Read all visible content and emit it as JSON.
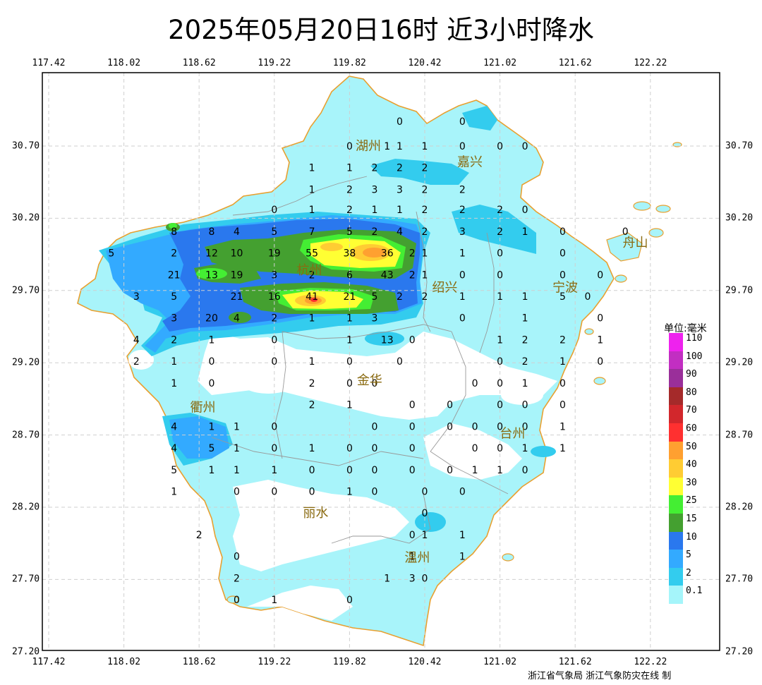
{
  "title": "2025年05月20日16时  近3小时降水",
  "axes": {
    "lon_ticks": [
      "117.42",
      "118.02",
      "118.62",
      "119.22",
      "119.82",
      "120.42",
      "121.02",
      "121.62",
      "122.22"
    ],
    "lat_ticks": [
      "30.70",
      "30.20",
      "29.70",
      "29.20",
      "28.70",
      "28.20",
      "27.70",
      "27.20"
    ]
  },
  "legend": {
    "title": "单位:毫米",
    "items": [
      {
        "label": "110",
        "color": "#ee22ee"
      },
      {
        "label": "100",
        "color": "#c22ec2"
      },
      {
        "label": "90",
        "color": "#9a2f9a"
      },
      {
        "label": "80",
        "color": "#a52a2a"
      },
      {
        "label": "70",
        "color": "#d2272c"
      },
      {
        "label": "60",
        "color": "#ff3030"
      },
      {
        "label": "50",
        "color": "#ffa030"
      },
      {
        "label": "40",
        "color": "#ffcc33"
      },
      {
        "label": "30",
        "color": "#ffff33"
      },
      {
        "label": "25",
        "color": "#44ee33"
      },
      {
        "label": "15",
        "color": "#44a030"
      },
      {
        "label": "10",
        "color": "#2a78ee"
      },
      {
        "label": "5",
        "color": "#33aaff"
      },
      {
        "label": "2",
        "color": "#33ccee"
      },
      {
        "label": "0.1",
        "color": "#a5f5fa"
      }
    ]
  },
  "cities": [
    {
      "name": "湖州",
      "lon": 119.97,
      "lat": 30.7
    },
    {
      "name": "嘉兴",
      "lon": 120.78,
      "lat": 30.59
    },
    {
      "name": "舟山",
      "lon": 122.1,
      "lat": 30.03
    },
    {
      "name": "杭州",
      "lon": 119.5,
      "lat": 29.84
    },
    {
      "name": "绍兴",
      "lon": 120.58,
      "lat": 29.72
    },
    {
      "name": "宁波",
      "lon": 121.54,
      "lat": 29.72
    },
    {
      "name": "金华",
      "lon": 119.98,
      "lat": 29.08
    },
    {
      "name": "衢州",
      "lon": 118.65,
      "lat": 28.89
    },
    {
      "name": "台州",
      "lon": 121.12,
      "lat": 28.71
    },
    {
      "name": "丽水",
      "lon": 119.55,
      "lat": 28.16
    },
    {
      "name": "温州",
      "lon": 120.36,
      "lat": 27.85
    }
  ],
  "stations": [
    [
      120.22,
      30.87,
      "0"
    ],
    [
      120.72,
      30.87,
      "0"
    ],
    [
      119.82,
      30.7,
      "0"
    ],
    [
      120.12,
      30.7,
      "1"
    ],
    [
      120.22,
      30.7,
      "1"
    ],
    [
      120.42,
      30.7,
      "1"
    ],
    [
      120.72,
      30.7,
      "0"
    ],
    [
      121.02,
      30.7,
      "0"
    ],
    [
      121.22,
      30.7,
      "0"
    ],
    [
      119.52,
      30.55,
      "1"
    ],
    [
      119.82,
      30.55,
      "1"
    ],
    [
      120.02,
      30.55,
      "2"
    ],
    [
      120.22,
      30.55,
      "2"
    ],
    [
      120.42,
      30.55,
      "2"
    ],
    [
      119.52,
      30.4,
      "1"
    ],
    [
      119.82,
      30.4,
      "2"
    ],
    [
      120.02,
      30.4,
      "3"
    ],
    [
      120.22,
      30.4,
      "3"
    ],
    [
      120.42,
      30.4,
      "2"
    ],
    [
      120.72,
      30.4,
      "2"
    ],
    [
      119.22,
      30.26,
      "0"
    ],
    [
      119.52,
      30.26,
      "1"
    ],
    [
      119.82,
      30.26,
      "2"
    ],
    [
      120.02,
      30.26,
      "1"
    ],
    [
      120.22,
      30.26,
      "1"
    ],
    [
      120.42,
      30.26,
      "2"
    ],
    [
      120.72,
      30.26,
      "2"
    ],
    [
      121.02,
      30.26,
      "2"
    ],
    [
      121.22,
      30.26,
      "0"
    ],
    [
      118.42,
      30.11,
      "8"
    ],
    [
      118.72,
      30.11,
      "8"
    ],
    [
      118.92,
      30.11,
      "4"
    ],
    [
      119.22,
      30.11,
      "5"
    ],
    [
      119.52,
      30.11,
      "7"
    ],
    [
      119.82,
      30.11,
      "5"
    ],
    [
      120.02,
      30.11,
      "2"
    ],
    [
      120.22,
      30.11,
      "4"
    ],
    [
      120.42,
      30.11,
      "2"
    ],
    [
      120.72,
      30.11,
      "3"
    ],
    [
      121.02,
      30.11,
      "2"
    ],
    [
      121.22,
      30.11,
      "1"
    ],
    [
      121.52,
      30.11,
      "0"
    ],
    [
      122.02,
      30.11,
      "0"
    ],
    [
      117.92,
      29.96,
      "5"
    ],
    [
      118.42,
      29.96,
      "2"
    ],
    [
      118.72,
      29.96,
      "12"
    ],
    [
      118.92,
      29.96,
      "10"
    ],
    [
      119.22,
      29.96,
      "19"
    ],
    [
      119.52,
      29.96,
      "55"
    ],
    [
      119.82,
      29.96,
      "38"
    ],
    [
      120.12,
      29.96,
      "36"
    ],
    [
      120.32,
      29.96,
      "2"
    ],
    [
      120.42,
      29.96,
      "1"
    ],
    [
      120.72,
      29.96,
      "1"
    ],
    [
      121.02,
      29.96,
      "0"
    ],
    [
      121.52,
      29.96,
      "0"
    ],
    [
      118.42,
      29.81,
      "21"
    ],
    [
      118.72,
      29.81,
      "13"
    ],
    [
      118.92,
      29.81,
      "19"
    ],
    [
      119.22,
      29.81,
      "3"
    ],
    [
      119.52,
      29.81,
      "2"
    ],
    [
      119.82,
      29.81,
      "6"
    ],
    [
      120.12,
      29.81,
      "43"
    ],
    [
      120.32,
      29.81,
      "2"
    ],
    [
      120.42,
      29.81,
      "1"
    ],
    [
      120.72,
      29.81,
      "0"
    ],
    [
      121.02,
      29.81,
      "0"
    ],
    [
      121.52,
      29.81,
      "0"
    ],
    [
      121.82,
      29.81,
      "0"
    ],
    [
      118.12,
      29.66,
      "3"
    ],
    [
      118.42,
      29.66,
      "5"
    ],
    [
      118.92,
      29.66,
      "21"
    ],
    [
      119.22,
      29.66,
      "16"
    ],
    [
      119.52,
      29.66,
      "41"
    ],
    [
      119.82,
      29.66,
      "21"
    ],
    [
      120.02,
      29.66,
      "5"
    ],
    [
      120.22,
      29.66,
      "2"
    ],
    [
      120.42,
      29.66,
      "2"
    ],
    [
      120.72,
      29.66,
      "1"
    ],
    [
      121.02,
      29.66,
      "1"
    ],
    [
      121.22,
      29.66,
      "1"
    ],
    [
      121.52,
      29.66,
      "5"
    ],
    [
      121.72,
      29.66,
      "0"
    ],
    [
      118.42,
      29.51,
      "3"
    ],
    [
      118.72,
      29.51,
      "20"
    ],
    [
      118.92,
      29.51,
      "4"
    ],
    [
      119.22,
      29.51,
      "2"
    ],
    [
      119.52,
      29.51,
      "1"
    ],
    [
      119.82,
      29.51,
      "1"
    ],
    [
      120.02,
      29.51,
      "3"
    ],
    [
      120.72,
      29.51,
      "0"
    ],
    [
      121.22,
      29.51,
      "1"
    ],
    [
      121.82,
      29.51,
      "0"
    ],
    [
      118.12,
      29.36,
      "4"
    ],
    [
      118.42,
      29.36,
      "2"
    ],
    [
      118.72,
      29.36,
      "1"
    ],
    [
      119.22,
      29.36,
      "0"
    ],
    [
      119.82,
      29.36,
      "1"
    ],
    [
      120.12,
      29.36,
      "13"
    ],
    [
      120.32,
      29.36,
      "0"
    ],
    [
      121.02,
      29.36,
      "1"
    ],
    [
      121.22,
      29.36,
      "2"
    ],
    [
      121.52,
      29.36,
      "2"
    ],
    [
      121.82,
      29.36,
      "1"
    ],
    [
      118.12,
      29.21,
      "2"
    ],
    [
      118.42,
      29.21,
      "1"
    ],
    [
      118.72,
      29.21,
      "0"
    ],
    [
      119.22,
      29.21,
      "0"
    ],
    [
      119.52,
      29.21,
      "1"
    ],
    [
      119.82,
      29.21,
      "0"
    ],
    [
      120.22,
      29.21,
      "0"
    ],
    [
      121.02,
      29.21,
      "0"
    ],
    [
      121.22,
      29.21,
      "2"
    ],
    [
      121.52,
      29.21,
      "1"
    ],
    [
      121.82,
      29.21,
      "0"
    ],
    [
      118.42,
      29.06,
      "1"
    ],
    [
      118.72,
      29.06,
      "0"
    ],
    [
      119.52,
      29.06,
      "2"
    ],
    [
      119.82,
      29.06,
      "0"
    ],
    [
      120.02,
      29.06,
      "0"
    ],
    [
      120.82,
      29.06,
      "0"
    ],
    [
      121.02,
      29.06,
      "0"
    ],
    [
      121.22,
      29.06,
      "1"
    ],
    [
      121.52,
      29.06,
      "0"
    ],
    [
      119.52,
      28.91,
      "2"
    ],
    [
      119.82,
      28.91,
      "1"
    ],
    [
      120.32,
      28.91,
      "0"
    ],
    [
      120.62,
      28.91,
      "0"
    ],
    [
      121.02,
      28.91,
      "0"
    ],
    [
      121.22,
      28.91,
      "0"
    ],
    [
      121.52,
      28.91,
      "0"
    ],
    [
      118.42,
      28.76,
      "4"
    ],
    [
      118.72,
      28.76,
      "1"
    ],
    [
      118.92,
      28.76,
      "1"
    ],
    [
      119.22,
      28.76,
      "0"
    ],
    [
      120.02,
      28.76,
      "0"
    ],
    [
      120.32,
      28.76,
      "0"
    ],
    [
      120.62,
      28.76,
      "0"
    ],
    [
      120.82,
      28.76,
      "0"
    ],
    [
      121.02,
      28.76,
      "0"
    ],
    [
      121.22,
      28.76,
      "0"
    ],
    [
      121.52,
      28.76,
      "1"
    ],
    [
      118.42,
      28.61,
      "4"
    ],
    [
      118.72,
      28.61,
      "5"
    ],
    [
      118.92,
      28.61,
      "1"
    ],
    [
      119.22,
      28.61,
      "0"
    ],
    [
      119.52,
      28.61,
      "1"
    ],
    [
      119.82,
      28.61,
      "0"
    ],
    [
      120.02,
      28.61,
      "0"
    ],
    [
      120.32,
      28.61,
      "0"
    ],
    [
      120.82,
      28.61,
      "0"
    ],
    [
      121.02,
      28.61,
      "0"
    ],
    [
      121.22,
      28.61,
      "1"
    ],
    [
      121.52,
      28.61,
      "1"
    ],
    [
      118.42,
      28.46,
      "5"
    ],
    [
      118.72,
      28.46,
      "1"
    ],
    [
      118.92,
      28.46,
      "1"
    ],
    [
      119.22,
      28.46,
      "1"
    ],
    [
      119.52,
      28.46,
      "0"
    ],
    [
      119.82,
      28.46,
      "0"
    ],
    [
      120.02,
      28.46,
      "0"
    ],
    [
      120.32,
      28.46,
      "0"
    ],
    [
      120.62,
      28.46,
      "0"
    ],
    [
      120.82,
      28.46,
      "1"
    ],
    [
      121.02,
      28.46,
      "1"
    ],
    [
      121.22,
      28.46,
      "0"
    ],
    [
      118.42,
      28.31,
      "1"
    ],
    [
      118.92,
      28.31,
      "0"
    ],
    [
      119.22,
      28.31,
      "0"
    ],
    [
      119.52,
      28.31,
      "0"
    ],
    [
      119.82,
      28.31,
      "1"
    ],
    [
      120.02,
      28.31,
      "0"
    ],
    [
      120.42,
      28.31,
      "0"
    ],
    [
      120.72,
      28.31,
      "0"
    ],
    [
      120.42,
      28.16,
      "0"
    ],
    [
      118.62,
      28.01,
      "2"
    ],
    [
      120.32,
      28.01,
      "0"
    ],
    [
      120.42,
      28.01,
      "1"
    ],
    [
      120.72,
      28.01,
      "1"
    ],
    [
      118.92,
      27.86,
      "0"
    ],
    [
      120.32,
      27.86,
      "1"
    ],
    [
      120.72,
      27.86,
      "1"
    ],
    [
      118.92,
      27.71,
      "2"
    ],
    [
      120.12,
      27.71,
      "1"
    ],
    [
      120.32,
      27.71,
      "3"
    ],
    [
      120.42,
      27.71,
      "0"
    ],
    [
      118.92,
      27.56,
      "0"
    ],
    [
      119.22,
      27.56,
      "1"
    ],
    [
      119.82,
      27.56,
      "0"
    ]
  ],
  "credit": "浙江省气象局  浙江气象防灾在线 制"
}
